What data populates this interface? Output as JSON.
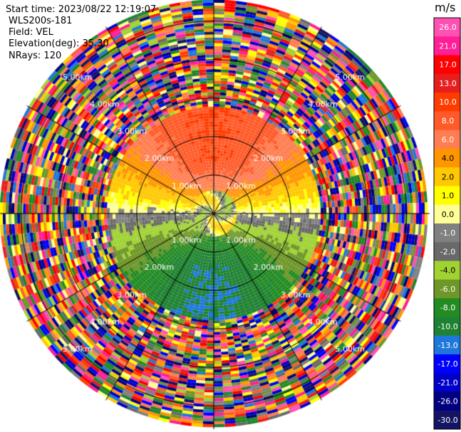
{
  "header": {
    "start_time": "Start time: 2023/08/22 12:19:07",
    "instrument": "WLS200s-181",
    "field": "Field: VEL",
    "elevation": "Elevation(deg): 35.30",
    "nrays": "NRays: 120"
  },
  "chart_data": {
    "type": "heatmap",
    "projection": "polar-ppi",
    "field": "VEL",
    "units": "m/s",
    "n_rays": 120,
    "elevation_deg": 35.3,
    "range_rings_km": [
      1.0,
      2.0,
      3.0,
      4.0,
      5.0
    ],
    "range_ring_labels": [
      "1.00km",
      "2.00km",
      "3.00km",
      "4.00km",
      "5.00km"
    ],
    "azimuth_lines_deg": [
      0,
      30,
      60,
      90,
      120,
      150,
      180,
      210,
      240,
      270,
      300,
      330
    ],
    "max_range_km": 5.6,
    "valid_range_km": 2.8,
    "colorbar": {
      "title": "m/s",
      "ticks": [
        "26.0",
        "21.0",
        "17.0",
        "13.0",
        "10.0",
        "8.0",
        "6.0",
        "4.0",
        "2.0",
        "1.0",
        "0.0",
        "-1.0",
        "-2.0",
        "-4.0",
        "-6.0",
        "-8.0",
        "-10.0",
        "-13.0",
        "-17.0",
        "-21.0",
        "-26.0",
        "-30.0"
      ],
      "bins": [
        {
          "min": 26,
          "max": 30,
          "color": "#ff50b4"
        },
        {
          "min": 21,
          "max": 26,
          "color": "#ff1e96"
        },
        {
          "min": 17,
          "max": 21,
          "color": "#ff0000"
        },
        {
          "min": 13,
          "max": 17,
          "color": "#e61e1e"
        },
        {
          "min": 10,
          "max": 13,
          "color": "#ff3c00"
        },
        {
          "min": 8,
          "max": 10,
          "color": "#ff5a28"
        },
        {
          "min": 6,
          "max": 8,
          "color": "#ff7d50"
        },
        {
          "min": 4,
          "max": 6,
          "color": "#ff9600"
        },
        {
          "min": 2,
          "max": 4,
          "color": "#ffc800"
        },
        {
          "min": 1,
          "max": 2,
          "color": "#ffff00"
        },
        {
          "min": 0,
          "max": 1,
          "color": "#ffff96"
        },
        {
          "min": -1,
          "max": 0,
          "color": "#808080"
        },
        {
          "min": -2,
          "max": -1,
          "color": "#696969"
        },
        {
          "min": -4,
          "max": -2,
          "color": "#a0d232"
        },
        {
          "min": -6,
          "max": -4,
          "color": "#6e9628"
        },
        {
          "min": -8,
          "max": -6,
          "color": "#228b22"
        },
        {
          "min": -10,
          "max": -8,
          "color": "#1e8232"
        },
        {
          "min": -13,
          "max": -10,
          "color": "#1e78dc"
        },
        {
          "min": -17,
          "max": -13,
          "color": "#0000ff"
        },
        {
          "min": -21,
          "max": -17,
          "color": "#0000c8"
        },
        {
          "min": -26,
          "max": -21,
          "color": "#000080"
        },
        {
          "min": -30,
          "max": -26,
          "color": "#141464"
        }
      ]
    },
    "velocity_pattern": {
      "description_values": "near-field valid region: approaching (positive) to north, receding (negative) to south",
      "north_peak_ms": 10.0,
      "south_peak_ms": -10.0,
      "zero_band_azimuth_deg": [
        80,
        100,
        260,
        280
      ]
    }
  }
}
